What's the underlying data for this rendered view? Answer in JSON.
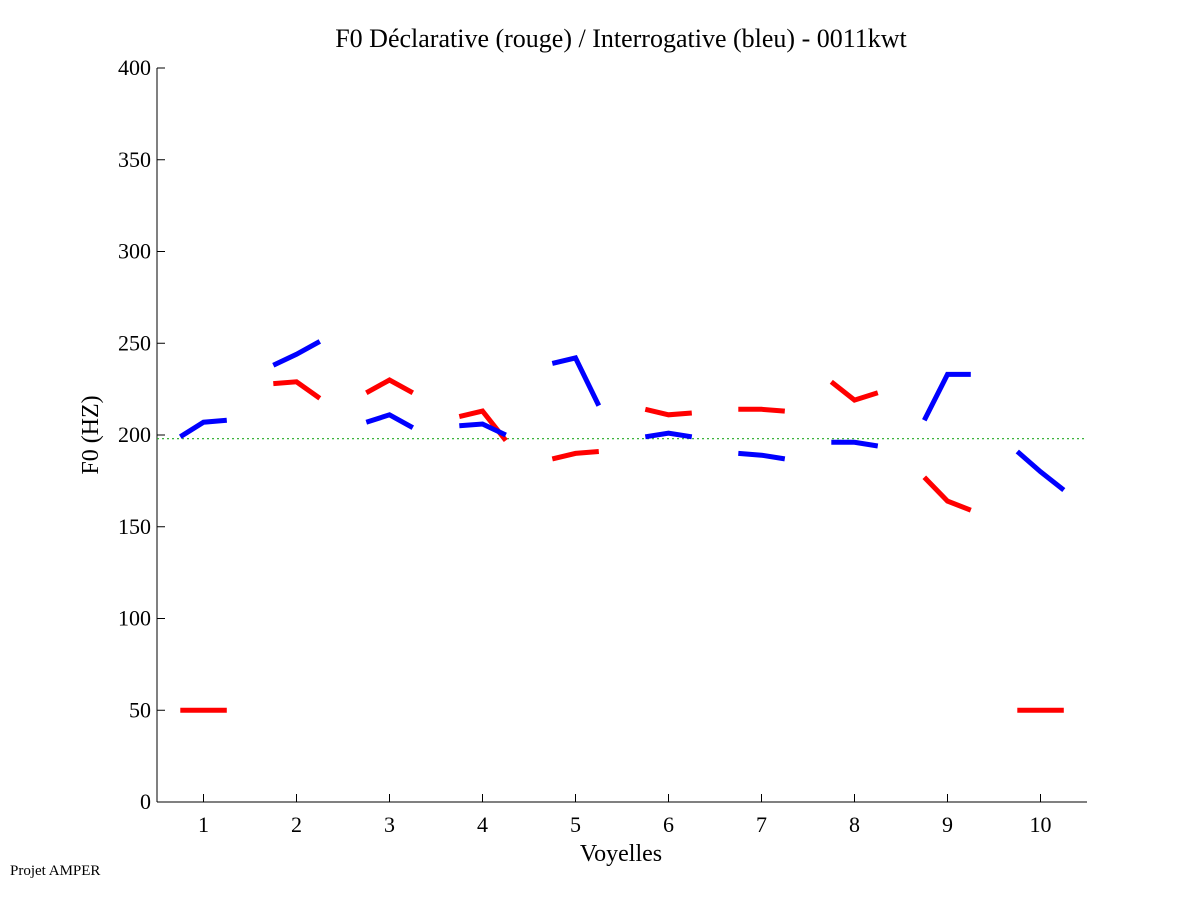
{
  "chart_data": {
    "type": "line",
    "title": "F0 Déclarative (rouge) / Interrogative (bleu) - 0011kwt",
    "xlabel": "Voyelles",
    "ylabel": "F0 (HZ)",
    "xlim": [
      0.5,
      10.5
    ],
    "ylim": [
      0,
      400
    ],
    "xticks": [
      1,
      2,
      3,
      4,
      5,
      6,
      7,
      8,
      9,
      10
    ],
    "yticks": [
      0,
      50,
      100,
      150,
      200,
      250,
      300,
      350,
      400
    ],
    "reference_line": {
      "y": 198,
      "color": "#22aa22",
      "style": "dotted"
    },
    "series": [
      {
        "name": "Déclarative",
        "color": "#ff0000",
        "segments": [
          [
            [
              0.75,
              50
            ],
            [
              1.0,
              50
            ],
            [
              1.25,
              50
            ]
          ],
          [
            [
              1.75,
              228
            ],
            [
              2.0,
              229
            ],
            [
              2.25,
              220
            ]
          ],
          [
            [
              2.75,
              223
            ],
            [
              3.0,
              230
            ],
            [
              3.25,
              223
            ]
          ],
          [
            [
              3.75,
              210
            ],
            [
              4.0,
              213
            ],
            [
              4.25,
              197
            ]
          ],
          [
            [
              4.75,
              187
            ],
            [
              5.0,
              190
            ],
            [
              5.25,
              191
            ]
          ],
          [
            [
              5.75,
              214
            ],
            [
              6.0,
              211
            ],
            [
              6.25,
              212
            ]
          ],
          [
            [
              6.75,
              214
            ],
            [
              7.0,
              214
            ],
            [
              7.25,
              213
            ]
          ],
          [
            [
              7.75,
              229
            ],
            [
              8.0,
              219
            ],
            [
              8.25,
              223
            ]
          ],
          [
            [
              8.75,
              177
            ],
            [
              9.0,
              164
            ],
            [
              9.25,
              159
            ]
          ],
          [
            [
              9.75,
              50
            ],
            [
              10.0,
              50
            ],
            [
              10.25,
              50
            ]
          ]
        ]
      },
      {
        "name": "Interrogative",
        "color": "#0000ff",
        "segments": [
          [
            [
              0.75,
              199
            ],
            [
              1.0,
              207
            ],
            [
              1.25,
              208
            ]
          ],
          [
            [
              1.75,
              238
            ],
            [
              2.0,
              244
            ],
            [
              2.25,
              251
            ]
          ],
          [
            [
              2.75,
              207
            ],
            [
              3.0,
              211
            ],
            [
              3.25,
              204
            ]
          ],
          [
            [
              3.75,
              205
            ],
            [
              4.0,
              206
            ],
            [
              4.25,
              200
            ]
          ],
          [
            [
              4.75,
              239
            ],
            [
              5.0,
              242
            ],
            [
              5.25,
              216
            ]
          ],
          [
            [
              5.75,
              199
            ],
            [
              6.0,
              201
            ],
            [
              6.25,
              199
            ]
          ],
          [
            [
              6.75,
              190
            ],
            [
              7.0,
              189
            ],
            [
              7.25,
              187
            ]
          ],
          [
            [
              7.75,
              196
            ],
            [
              8.0,
              196
            ],
            [
              8.25,
              194
            ]
          ],
          [
            [
              8.75,
              208
            ],
            [
              9.0,
              233
            ],
            [
              9.25,
              233
            ]
          ],
          [
            [
              9.75,
              191
            ],
            [
              10.0,
              180
            ],
            [
              10.25,
              170
            ]
          ]
        ]
      }
    ]
  },
  "footer": {
    "note": "Projet AMPER"
  }
}
